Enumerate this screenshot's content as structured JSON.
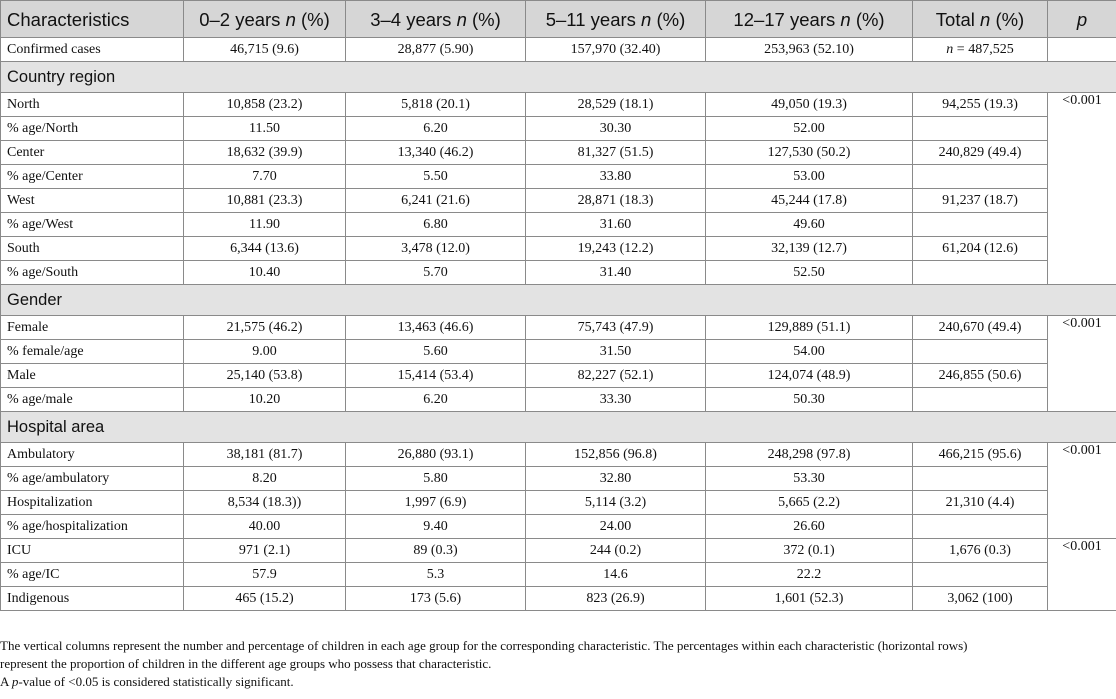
{
  "header": {
    "characteristics": "Characteristics",
    "col1_prefix": "0–2 years",
    "col2_prefix": "3–4 years",
    "col3_prefix": "5–11 years",
    "col4_prefix": "12–17 years",
    "col5_prefix": "Total",
    "n": "n",
    "pct": "(%)",
    "p": "p"
  },
  "confirmed": {
    "label": "Confirmed cases",
    "v1": "46,715 (9.6)",
    "v2": "28,877 (5.90)",
    "v3": "157,970 (32.40)",
    "v4": "253,963 (52.10)",
    "total_n": "n",
    "total_rest": " = 487,525"
  },
  "sections": [
    {
      "title": "Country region",
      "p": "<0.001",
      "rows": [
        [
          "North",
          "10,858 (23.2)",
          "5,818 (20.1)",
          "28,529 (18.1)",
          "49,050 (19.3)",
          "94,255 (19.3)"
        ],
        [
          "% age/North",
          "11.50",
          "6.20",
          "30.30",
          "52.00",
          ""
        ],
        [
          "Center",
          "18,632 (39.9)",
          "13,340 (46.2)",
          "81,327 (51.5)",
          "127,530 (50.2)",
          "240,829 (49.4)"
        ],
        [
          "% age/Center",
          "7.70",
          "5.50",
          "33.80",
          "53.00",
          ""
        ],
        [
          "West",
          "10,881 (23.3)",
          "6,241 (21.6)",
          "28,871 (18.3)",
          "45,244 (17.8)",
          "91,237 (18.7)"
        ],
        [
          "% age/West",
          "11.90",
          "6.80",
          "31.60",
          "49.60",
          ""
        ],
        [
          "South",
          "6,344 (13.6)",
          "3,478 (12.0)",
          "19,243 (12.2)",
          "32,139 (12.7)",
          "61,204 (12.6)"
        ],
        [
          "% age/South",
          "10.40",
          "5.70",
          "31.40",
          "52.50",
          ""
        ]
      ]
    },
    {
      "title": "Gender",
      "p": "<0.001",
      "rows": [
        [
          "Female",
          "21,575 (46.2)",
          "13,463 (46.6)",
          "75,743 (47.9)",
          "129,889 (51.1)",
          "240,670 (49.4)"
        ],
        [
          "% female/age",
          "9.00",
          "5.60",
          "31.50",
          "54.00",
          ""
        ],
        [
          "Male",
          "25,140 (53.8)",
          "15,414 (53.4)",
          "82,227 (52.1)",
          "124,074 (48.9)",
          "246,855 (50.6)"
        ],
        [
          "% age/male",
          "10.20",
          "6.20",
          "33.30",
          "50.30",
          ""
        ]
      ]
    },
    {
      "title": "Hospital area",
      "p": "<0.001",
      "rows": [
        [
          "Ambulatory",
          "38,181 (81.7)",
          "26,880 (93.1)",
          "152,856 (96.8)",
          "248,298 (97.8)",
          "466,215 (95.6)"
        ],
        [
          "% age/ambulatory",
          "8.20",
          "5.80",
          "32.80",
          "53.30",
          ""
        ],
        [
          "Hospitalization",
          "8,534 (18.3))",
          "1,997 (6.9)",
          "5,114 (3.2)",
          "5,665 (2.2)",
          "21,310 (4.4)"
        ],
        [
          "% age/hospitalization",
          "40.00",
          "9.40",
          "24.00",
          "26.60",
          ""
        ]
      ]
    }
  ],
  "icu": {
    "p": "<0.001",
    "rows": [
      [
        "ICU",
        "971 (2.1)",
        "89 (0.3)",
        "244 (0.2)",
        "372 (0.1)",
        "1,676 (0.3)"
      ],
      [
        "% age/IC",
        "57.9",
        "5.3",
        "14.6",
        "22.2",
        ""
      ],
      [
        "Indigenous",
        "465 (15.2)",
        "173 (5.6)",
        "823 (26.9)",
        "1,601 (52.3)",
        "3,062 (100)"
      ]
    ]
  },
  "notes": {
    "line1": "The vertical columns represent the number and percentage of children in each age group for the corresponding characteristic. The percentages within each characteristic (horizontal rows)",
    "line2": "represent the proportion of children in the different age groups who possess that characteristic.",
    "line3_a": "A ",
    "line3_p": "p",
    "line3_b": "-value of <0.05 is considered statistically significant."
  }
}
